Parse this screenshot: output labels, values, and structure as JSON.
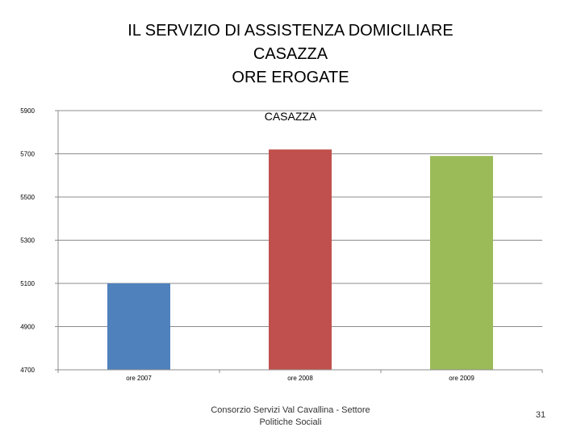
{
  "slide": {
    "title_lines": [
      "IL SERVIZIO DI ASSISTENZA DOMICILIARE",
      "CASAZZA",
      "ORE EROGATE"
    ],
    "footer": "Consorzio Servizi Val Cavallina - Settore Politiche Sociali",
    "page_number": "31"
  },
  "chart_data": {
    "type": "bar",
    "title": "CASAZZA",
    "categories": [
      "ore 2007",
      "ore 2008",
      "ore 2009"
    ],
    "values": [
      5100,
      5720,
      5690
    ],
    "colors": [
      "#4f81bd",
      "#c0504d",
      "#9bbb59"
    ],
    "ylim": [
      4700,
      5900
    ],
    "yticks": [
      4700,
      4900,
      5100,
      5300,
      5500,
      5700,
      5900
    ],
    "grid": true,
    "xlabel": "",
    "ylabel": ""
  }
}
